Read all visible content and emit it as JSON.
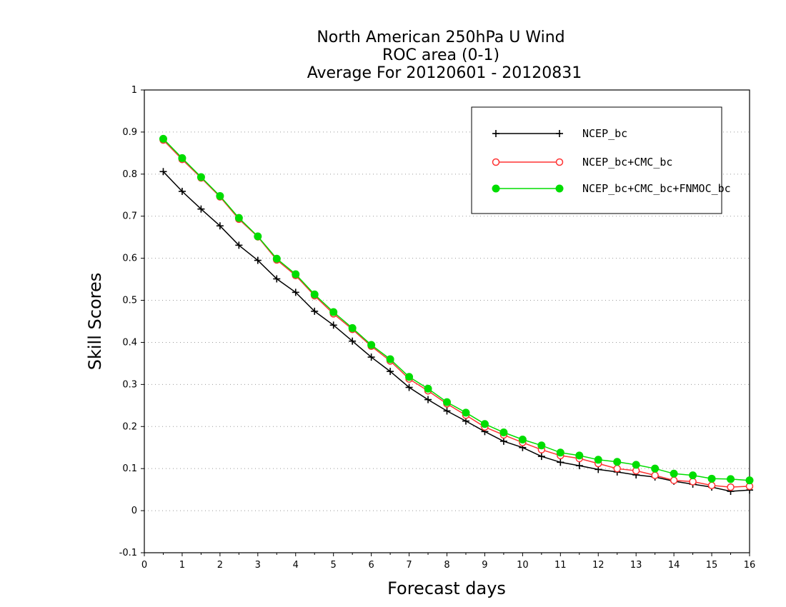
{
  "chart_data": {
    "type": "line",
    "title_lines": [
      "North American 250hPa U Wind",
      "ROC area (0-1)",
      "Average For 20120601 - 20120831"
    ],
    "xlabel": "Forecast days",
    "ylabel": "Skill Scores",
    "xlim": [
      0,
      16
    ],
    "ylim": [
      -0.1,
      1
    ],
    "x_ticks": [
      "0",
      "1",
      "2",
      "3",
      "4",
      "5",
      "6",
      "7",
      "8",
      "9",
      "10",
      "11",
      "12",
      "13",
      "14",
      "15",
      "16"
    ],
    "y_ticks": [
      "-0.1",
      "0",
      "0.1",
      "0.2",
      "0.3",
      "0.4",
      "0.5",
      "0.6",
      "0.7",
      "0.8",
      "0.9",
      "1"
    ],
    "grid": true,
    "legend_position": "top-right",
    "x": [
      0.5,
      1,
      1.5,
      2,
      2.5,
      3,
      3.5,
      4,
      4.5,
      5,
      5.5,
      6,
      6.5,
      7,
      7.5,
      8,
      8.5,
      9,
      9.5,
      10,
      10.5,
      11,
      11.5,
      12,
      12.5,
      13,
      13.5,
      14,
      14.5,
      15,
      15.5,
      16
    ],
    "series": [
      {
        "name": "NCEP_bc",
        "color": "#000000",
        "marker": "plus",
        "values": [
          0.806,
          0.759,
          0.717,
          0.677,
          0.631,
          0.595,
          0.551,
          0.519,
          0.474,
          0.441,
          0.403,
          0.365,
          0.331,
          0.293,
          0.264,
          0.237,
          0.213,
          0.188,
          0.165,
          0.15,
          0.129,
          0.115,
          0.107,
          0.098,
          0.092,
          0.085,
          0.08,
          0.07,
          0.063,
          0.056,
          0.046,
          0.049
        ]
      },
      {
        "name": "NCEP_bc+CMC_bc",
        "color": "#ff3333",
        "marker": "open-circle",
        "values": [
          0.881,
          0.835,
          0.791,
          0.746,
          0.693,
          0.651,
          0.596,
          0.559,
          0.511,
          0.468,
          0.431,
          0.391,
          0.356,
          0.313,
          0.285,
          0.254,
          0.227,
          0.199,
          0.18,
          0.162,
          0.145,
          0.131,
          0.124,
          0.112,
          0.1,
          0.095,
          0.084,
          0.072,
          0.069,
          0.06,
          0.056,
          0.058
        ]
      },
      {
        "name": "NCEP_bc+CMC_bc+FNMOC_bc",
        "color": "#00dd00",
        "marker": "filled-circle",
        "values": [
          0.884,
          0.838,
          0.793,
          0.748,
          0.696,
          0.652,
          0.599,
          0.562,
          0.514,
          0.472,
          0.434,
          0.394,
          0.36,
          0.318,
          0.29,
          0.258,
          0.233,
          0.206,
          0.186,
          0.169,
          0.155,
          0.138,
          0.131,
          0.121,
          0.116,
          0.109,
          0.1,
          0.088,
          0.084,
          0.076,
          0.075,
          0.072
        ]
      }
    ]
  }
}
